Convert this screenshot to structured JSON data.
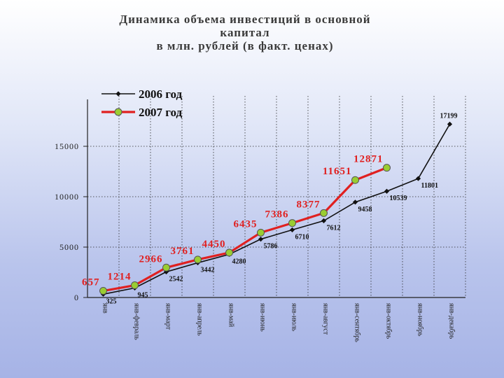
{
  "slide": {
    "title_lines": [
      "Динамика объема инвестиций в основной",
      "капитал",
      "в млн. рублей (в факт. ценах)"
    ]
  },
  "chart_data": {
    "type": "line",
    "title": "Динамика объема инвестиций в основной капитал в млн. рублей (в факт. ценах)",
    "categories": [
      "янв",
      "янв-февраль",
      "янв-март",
      "янв-апрель",
      "янв-май",
      "янв-июнь",
      "янв-июль",
      "янв-август",
      "янв-сентябрь",
      "янв-октябрь",
      "янв-ноябрь",
      "янв-декабрь"
    ],
    "series": [
      {
        "name": "2006 год",
        "color": "#111111",
        "values": [
          325,
          945,
          2542,
          3442,
          4280,
          5786,
          6710,
          7612,
          9458,
          10539,
          11801,
          17199
        ]
      },
      {
        "name": "2007 год",
        "color": "#e02020",
        "marker_fill": "#9acd32",
        "values": [
          657,
          1214,
          2966,
          3761,
          4450,
          6435,
          7386,
          8377,
          11651,
          12871,
          null,
          null
        ]
      }
    ],
    "ylim": [
      0,
      20000
    ],
    "yticks": [
      0,
      5000,
      10000,
      15000
    ],
    "ytick_labels": [
      "0",
      "5000",
      "10000",
      "15000"
    ],
    "grid": true,
    "legend_position": "top-left"
  }
}
